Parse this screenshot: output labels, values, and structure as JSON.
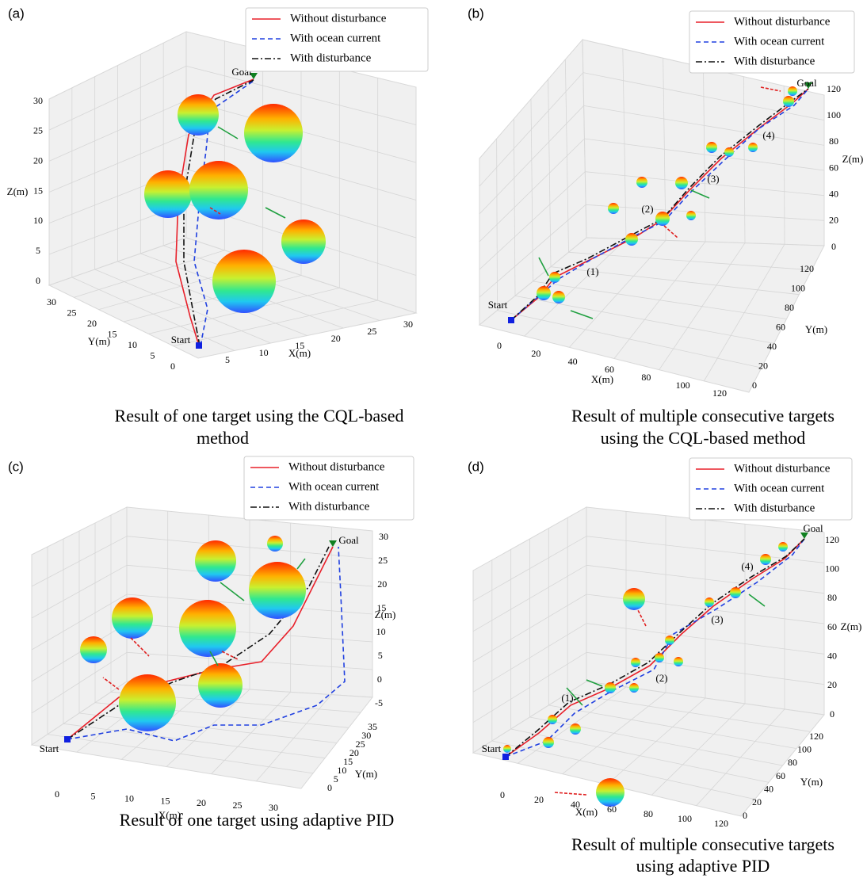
{
  "panels": [
    {
      "label": "(a)",
      "legend": [
        "Without disturbance",
        "With ocean current",
        "With disturbance"
      ],
      "axes": {
        "x": {
          "label": "X(m)",
          "ticks": [
            5,
            10,
            15,
            20,
            25,
            30
          ]
        },
        "y": {
          "label": "Y(m)",
          "ticks": [
            30,
            25,
            20,
            15,
            10,
            5,
            0
          ]
        },
        "z": {
          "label": "Z(m)",
          "ticks": [
            0,
            5,
            10,
            15,
            20,
            25,
            30
          ]
        }
      },
      "annotations": [
        "Goal",
        "Start"
      ],
      "caption": [
        "Result of one target using the CQL-based",
        "method"
      ]
    },
    {
      "label": "(b)",
      "legend": [
        "Without disturbance",
        "With ocean current",
        "With disturbance"
      ],
      "axes": {
        "x": {
          "label": "X(m)",
          "ticks": [
            0,
            20,
            40,
            60,
            80,
            100,
            120
          ]
        },
        "y": {
          "label": "Y(m)",
          "ticks": [
            0,
            20,
            40,
            60,
            80,
            100,
            120
          ]
        },
        "z": {
          "label": "Z(m)",
          "ticks": [
            0,
            20,
            40,
            60,
            80,
            100,
            120
          ]
        }
      },
      "annotations": [
        "Start",
        "Goal",
        "(1)",
        "(2)",
        "(3)",
        "(4)"
      ],
      "caption": [
        "Result of multiple consecutive targets",
        "using the CQL-based method"
      ]
    },
    {
      "label": "(c)",
      "legend": [
        "Without disturbance",
        "With ocean current",
        "With disturbance"
      ],
      "axes": {
        "x": {
          "label": "X(m)",
          "ticks": [
            0,
            5,
            10,
            15,
            20,
            25,
            30
          ]
        },
        "y": {
          "label": "Y(m)",
          "ticks": [
            0,
            5,
            10,
            15,
            20,
            25,
            30,
            35
          ]
        },
        "z": {
          "label": "Z(m)",
          "ticks": [
            -5,
            0,
            5,
            10,
            15,
            20,
            25,
            30
          ]
        }
      },
      "annotations": [
        "Start",
        "Goal"
      ],
      "caption": [
        "Result of one target using adaptive PID"
      ]
    },
    {
      "label": "(d)",
      "legend": [
        "Without disturbance",
        "With ocean current",
        "With disturbance"
      ],
      "axes": {
        "x": {
          "label": "X(m)",
          "ticks": [
            0,
            20,
            40,
            60,
            80,
            100,
            120
          ]
        },
        "y": {
          "label": "Y(m)",
          "ticks": [
            0,
            20,
            40,
            60,
            80,
            100,
            120
          ]
        },
        "z": {
          "label": "Z(m)",
          "ticks": [
            0,
            20,
            40,
            60,
            80,
            100,
            120
          ]
        }
      },
      "annotations": [
        "Start",
        "Goal",
        "(1)",
        "(2)",
        "(3)",
        "(4)"
      ],
      "caption": [
        "Result of multiple consecutive targets",
        "using adaptive PID"
      ]
    }
  ]
}
